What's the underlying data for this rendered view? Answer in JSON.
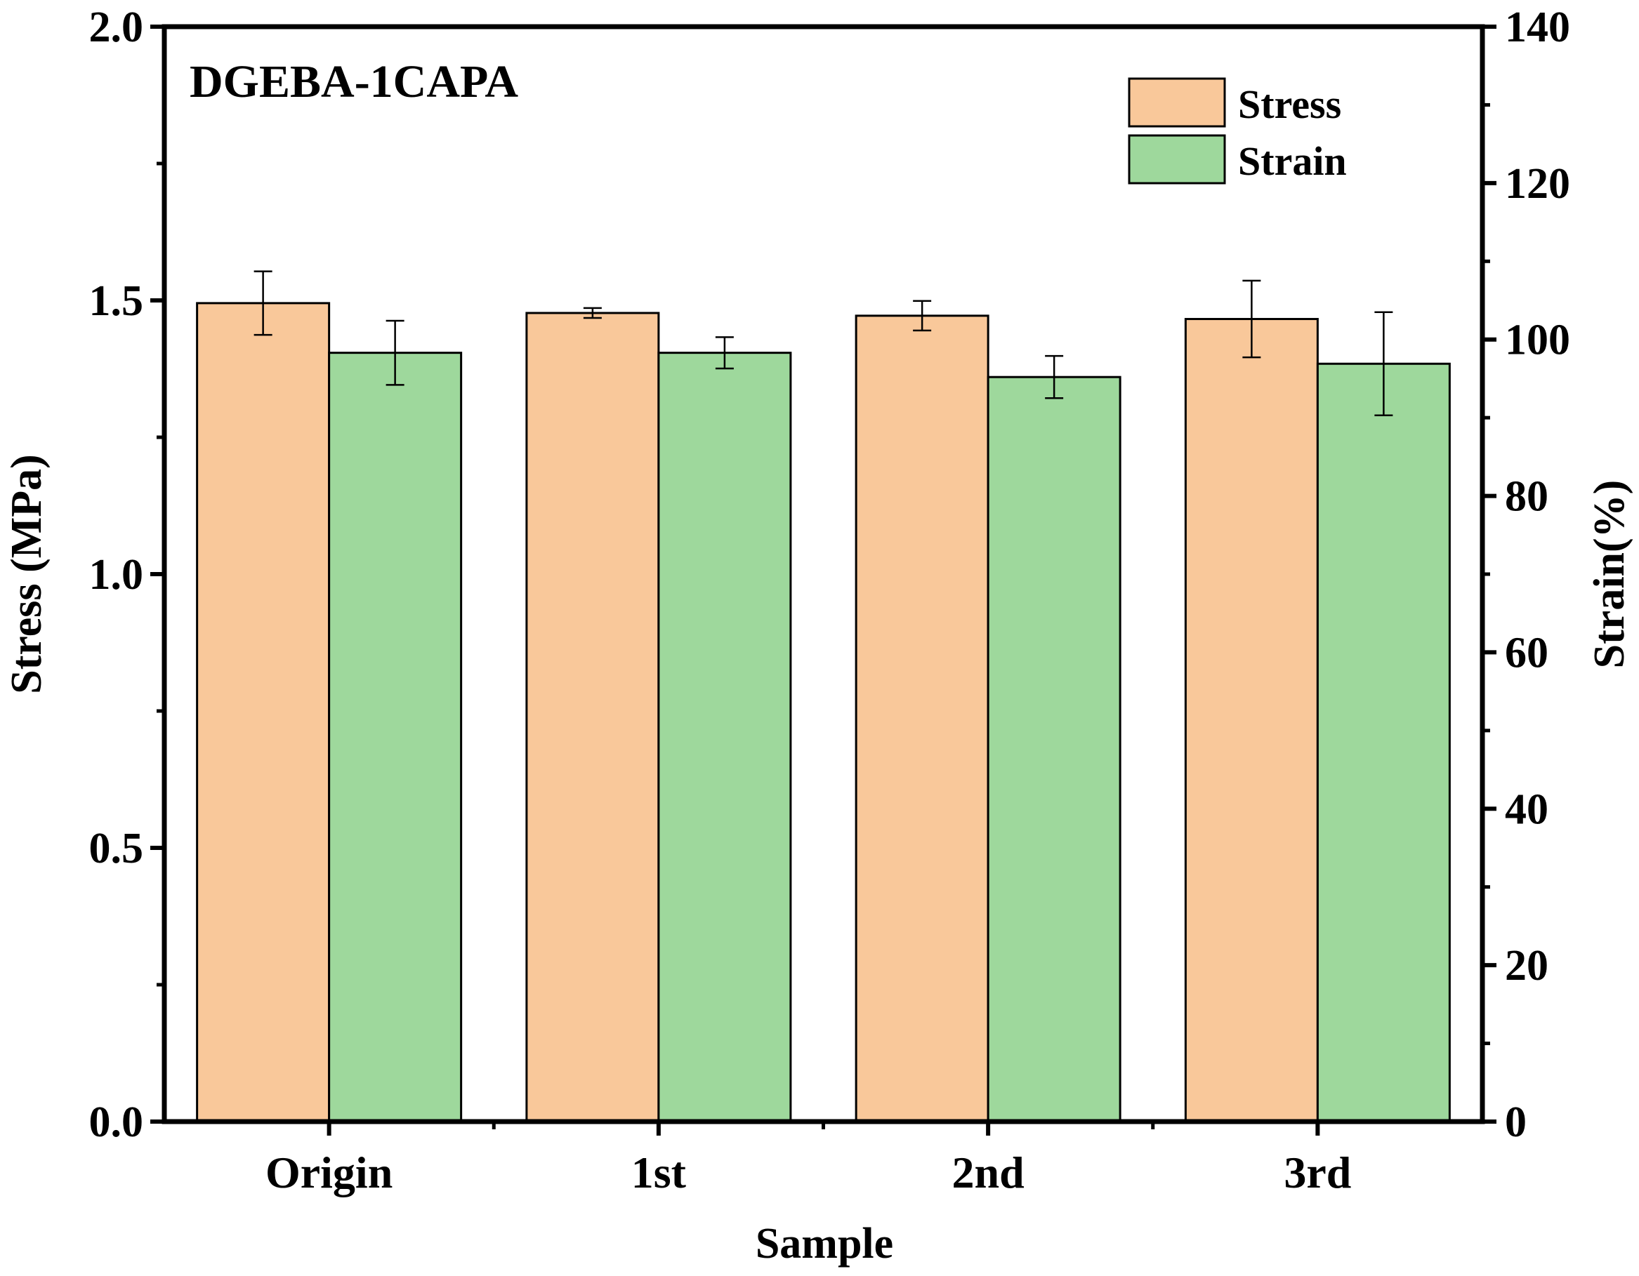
{
  "chart_data": {
    "type": "bar",
    "title": "DGEBA-1CAPA",
    "xlabel": "Sample",
    "ylabel": "Stress (MPa)",
    "y2label": "Strain(%)",
    "categories": [
      "Origin",
      "1st",
      "2nd",
      "3rd"
    ],
    "ylim": [
      0,
      2.0
    ],
    "y2lim": [
      0,
      140
    ],
    "yticks": [
      "0.0",
      "0.5",
      "1.0",
      "1.5",
      "2.0"
    ],
    "y2ticks": [
      "0",
      "20",
      "40",
      "60",
      "80",
      "100",
      "120",
      "140"
    ],
    "legend_position": "top-right",
    "series": [
      {
        "name": "Stress",
        "axis": "left",
        "color": "#F9C89A",
        "values": [
          1.495,
          1.477,
          1.472,
          1.466
        ],
        "errors": [
          0.058,
          0.009,
          0.027,
          0.07
        ]
      },
      {
        "name": "Strain",
        "axis": "right",
        "color": "#9ED89C",
        "values": [
          98.3,
          98.3,
          95.2,
          96.9
        ],
        "errors": [
          4.1,
          2.0,
          2.7,
          6.6
        ]
      }
    ]
  }
}
